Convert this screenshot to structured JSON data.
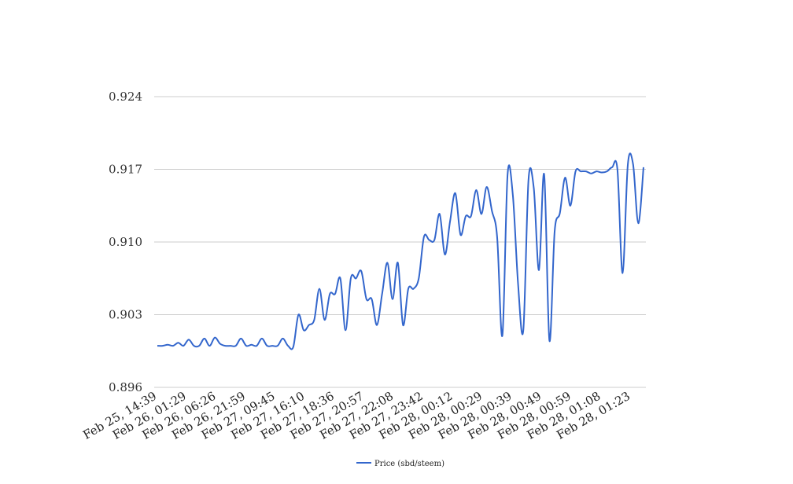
{
  "chart_data": {
    "type": "line",
    "title": "",
    "xlabel": "",
    "ylabel": "",
    "ylim": [
      0.896,
      0.924
    ],
    "yticks": [
      "0.896",
      "0.903",
      "0.910",
      "0.917",
      "0.924"
    ],
    "grid": true,
    "legend_position": "bottom",
    "x_tick_labels": [
      "Feb 25, 14:39",
      "Feb 26, 01:29",
      "Feb 26, 06:26",
      "Feb 26, 21:59",
      "Feb 27, 09:45",
      "Feb 27, 16:10",
      "Feb 27, 18:36",
      "Feb 27, 20:57",
      "Feb 27, 22:08",
      "Feb 27, 23:42",
      "Feb 28, 00:12",
      "Feb 28, 00:29",
      "Feb 28, 00:39",
      "Feb 28, 00:49",
      "Feb 28, 00:59",
      "Feb 28, 01:08",
      "Feb 28, 01:23"
    ],
    "series": [
      {
        "name": "Price (sbd/steem)",
        "color": "#3366cc",
        "values": [
          0.9,
          0.9,
          0.9001,
          0.9,
          0.9003,
          0.9,
          0.9006,
          0.9,
          0.9,
          0.9007,
          0.9,
          0.9008,
          0.9002,
          0.9,
          0.9,
          0.9,
          0.9007,
          0.9,
          0.9001,
          0.9,
          0.9007,
          0.9,
          0.9,
          0.9,
          0.9007,
          0.9,
          0.8999,
          0.903,
          0.9015,
          0.902,
          0.9025,
          0.9055,
          0.9025,
          0.905,
          0.905,
          0.9065,
          0.9015,
          0.9065,
          0.9065,
          0.9072,
          0.9045,
          0.9045,
          0.902,
          0.905,
          0.908,
          0.9045,
          0.908,
          0.902,
          0.9055,
          0.9055,
          0.9065,
          0.9105,
          0.9102,
          0.9102,
          0.9127,
          0.9088,
          0.912,
          0.9147,
          0.9107,
          0.9125,
          0.9125,
          0.915,
          0.9127,
          0.9153,
          0.913,
          0.9105,
          0.901,
          0.9165,
          0.9145,
          0.906,
          0.9015,
          0.916,
          0.9152,
          0.9073,
          0.9165,
          0.9005,
          0.911,
          0.9128,
          0.9162,
          0.9135,
          0.9168,
          0.9168,
          0.9168,
          0.9166,
          0.9168,
          0.9167,
          0.9168,
          0.9172,
          0.917,
          0.907,
          0.9175,
          0.9175,
          0.9118,
          0.9172
        ]
      }
    ]
  }
}
